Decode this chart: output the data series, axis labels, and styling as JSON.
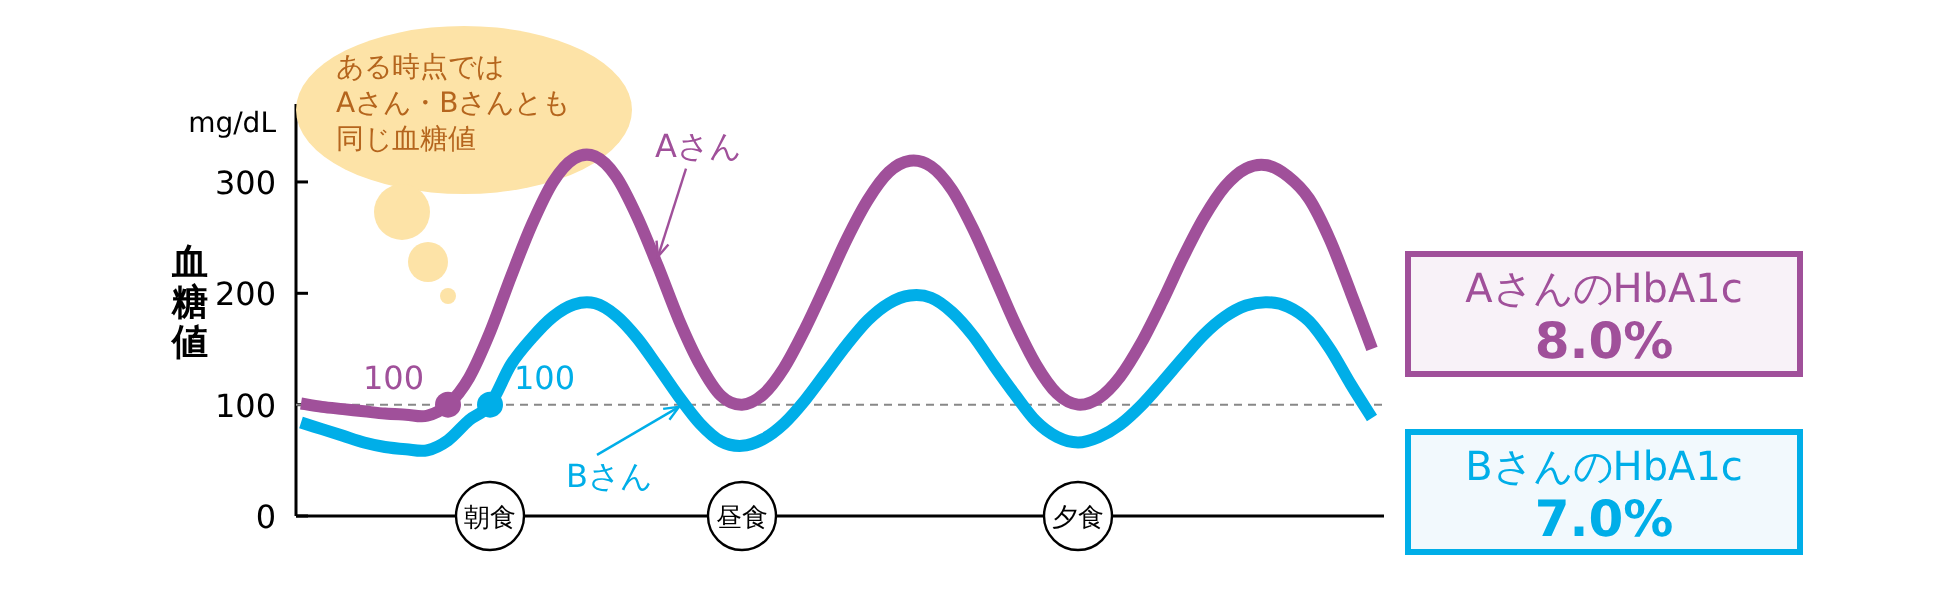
{
  "chart_data": {
    "type": "line",
    "ylabel": "血糖値",
    "subtitle": "mg/dL",
    "categories": [
      null,
      null,
      null,
      null,
      null,
      null,
      null,
      null,
      null,
      "朝食",
      null,
      null,
      null,
      null,
      null,
      null,
      null,
      null,
      null,
      null,
      null,
      "昼食",
      null,
      null,
      null,
      null,
      null,
      null,
      null,
      null,
      null,
      null,
      null,
      null,
      null,
      null,
      null,
      "夕食",
      null,
      null,
      null,
      null,
      null,
      null,
      null,
      null,
      null,
      null,
      null,
      null,
      null,
      null
    ],
    "ylim": [
      0,
      370
    ],
    "yticks": [
      0,
      100,
      200,
      300
    ],
    "ref_lines": [
      {
        "axis": "y",
        "value": 100,
        "color": "#888888",
        "line_style": "dashed"
      }
    ],
    "series": [
      {
        "name": "Aさん",
        "color": "#a0509a",
        "values": [
          101,
          98,
          96,
          94,
          92,
          91,
          90,
          100,
          124,
          165,
          215,
          262,
          300,
          321,
          323,
          305,
          269,
          224,
          176,
          136,
          108,
          100,
          109,
          133,
          168,
          208,
          249,
          284,
          309,
          319,
          314,
          293,
          258,
          216,
          173,
          136,
          110,
          100,
          106,
          125,
          155,
          192,
          232,
          268,
          296,
          312,
          315,
          305,
          285,
          248,
          200,
          150
        ]
      },
      {
        "name": "Bさん",
        "color": "#00aee8",
        "values": [
          84,
          78,
          72,
          66,
          62,
          60,
          59,
          68,
          86,
          100,
          136,
          160,
          179,
          190,
          191,
          180,
          160,
          134,
          107,
          83,
          67,
          63,
          69,
          83,
          104,
          129,
          154,
          176,
          191,
          198,
          196,
          183,
          162,
          135,
          109,
          85,
          71,
          66,
          71,
          82,
          99,
          120,
          142,
          163,
          179,
          189,
          192,
          188,
          175,
          150,
          118,
          88
        ]
      },
      {
        "type": "scatter",
        "color": "#a0509a",
        "values": [
          null,
          null,
          null,
          null,
          null,
          null,
          null,
          100,
          null,
          null,
          null,
          null,
          null,
          null,
          null,
          null,
          null,
          null,
          null,
          null,
          null,
          null,
          null,
          null,
          null,
          null,
          null,
          null,
          null,
          null,
          null,
          null,
          null,
          null,
          null,
          null,
          null,
          null,
          null,
          null,
          null,
          null,
          null,
          null,
          null,
          null,
          null,
          null,
          null,
          null,
          null,
          null
        ],
        "value_labels": [
          null,
          null,
          null,
          null,
          null,
          null,
          null,
          "100",
          null,
          null,
          null,
          null,
          null,
          null,
          null,
          null,
          null,
          null,
          null,
          null,
          null,
          null,
          null,
          null,
          null,
          null,
          null,
          null,
          null,
          null,
          null,
          null,
          null,
          null,
          null,
          null,
          null,
          null,
          null,
          null,
          null,
          null,
          null,
          null,
          null,
          null,
          null,
          null,
          null,
          null,
          null,
          null
        ]
      },
      {
        "type": "scatter",
        "color": "#00aee8",
        "values": [
          null,
          null,
          null,
          null,
          null,
          null,
          null,
          null,
          null,
          100,
          null,
          null,
          null,
          null,
          null,
          null,
          null,
          null,
          null,
          null,
          null,
          null,
          null,
          null,
          null,
          null,
          null,
          null,
          null,
          null,
          null,
          null,
          null,
          null,
          null,
          null,
          null,
          null,
          null,
          null,
          null,
          null,
          null,
          null,
          null,
          null,
          null,
          null,
          null,
          null,
          null,
          null
        ],
        "value_labels": [
          null,
          null,
          null,
          null,
          null,
          null,
          null,
          null,
          null,
          "100",
          null,
          null,
          null,
          null,
          null,
          null,
          null,
          null,
          null,
          null,
          null,
          null,
          null,
          null,
          null,
          null,
          null,
          null,
          null,
          null,
          null,
          null,
          null,
          null,
          null,
          null,
          null,
          null,
          null,
          null,
          null,
          null,
          null,
          null,
          null,
          null,
          null,
          null,
          null,
          null,
          null,
          null
        ]
      }
    ],
    "annotations": [
      "ある時点では",
      "Aさん・Bさんとも",
      "同じ血糖値",
      "AさんのHbA1c\n8.0%",
      "BさんのHbA1c\n7.0%"
    ]
  }
}
